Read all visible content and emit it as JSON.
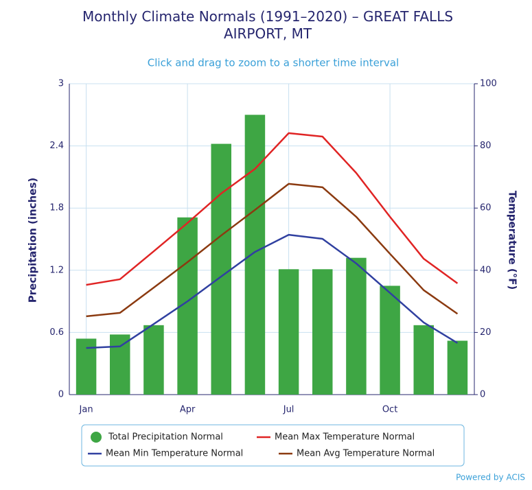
{
  "chart_data": {
    "type": "bar",
    "title": "Monthly Climate Normals (1991–2020) – GREAT FALLS AIRPORT, MT",
    "subtitle": "Click and drag to zoom to a shorter time interval",
    "credits": "Powered by ACIS",
    "y_label": "Precipitation (inches)",
    "y2_label": "Temperature (°F)",
    "categories": [
      "Jan",
      null,
      null,
      "Apr",
      null,
      null,
      "Jul",
      null,
      null,
      "Oct",
      null,
      null
    ],
    "ylim": [
      0,
      3
    ],
    "yticks": [
      0,
      0.6,
      1.2,
      1.8,
      2.4,
      3
    ],
    "y2lim": [
      0,
      100
    ],
    "y2ticks": [
      0,
      20,
      40,
      60,
      80,
      100
    ],
    "grid": true,
    "series": [
      {
        "name": "Total Precipitation Normal",
        "type": "bar",
        "color": "#3ea644",
        "values": [
          0.54,
          0.58,
          0.67,
          1.71,
          2.42,
          2.7,
          1.21,
          1.21,
          1.32,
          1.05,
          0.67,
          0.52
        ]
      },
      {
        "name": "Mean Max Temperature Normal",
        "type": "line",
        "axis": "y2",
        "color": "#e02424",
        "values": [
          35.3,
          37.1,
          46.1,
          55.2,
          64.7,
          72.6,
          84.1,
          83.0,
          71.3,
          57.2,
          43.7,
          35.8
        ]
      },
      {
        "name": "Mean Min Temperature Normal",
        "type": "line",
        "axis": "y2",
        "color": "#3040a0",
        "values": [
          15.0,
          15.5,
          22.7,
          30.0,
          38.0,
          45.9,
          51.4,
          50.1,
          42.2,
          32.7,
          23.2,
          16.6
        ]
      },
      {
        "name": "Mean Avg Temperature Normal",
        "type": "line",
        "axis": "y2",
        "color": "#8b3a10",
        "values": [
          25.2,
          26.3,
          34.4,
          42.6,
          51.2,
          59.4,
          67.8,
          66.7,
          57.2,
          45.3,
          33.6,
          26.0
        ]
      }
    ]
  }
}
